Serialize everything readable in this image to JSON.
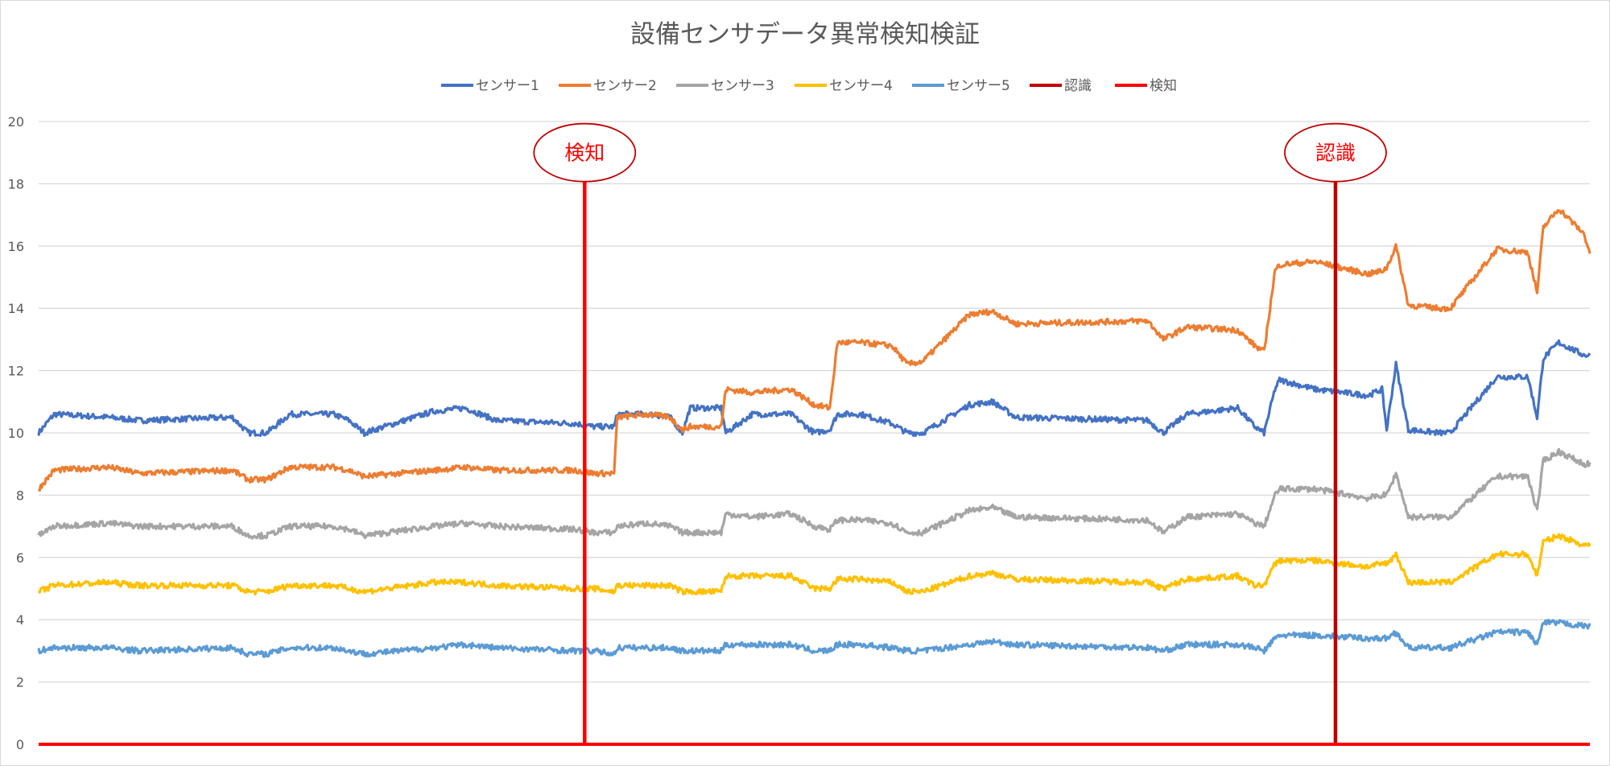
{
  "chart_data": {
    "type": "line",
    "title": "設備センサデータ異常検知検証",
    "xlabel": "",
    "ylabel": "",
    "ylim": [
      0,
      20
    ],
    "yticks": [
      "0",
      "2",
      "4",
      "6",
      "8",
      "10",
      "12",
      "14",
      "16",
      "18",
      "20"
    ],
    "xlim": [
      0,
      1000
    ],
    "grid": true,
    "legend_position": "top",
    "series": [
      {
        "name": "センサー1",
        "color": "#4472C4",
        "x": [
          0,
          10,
          45,
          65,
          125,
          135,
          147,
          162,
          190,
          200,
          210,
          255,
          275,
          295,
          346,
          358,
          371,
          373,
          393,
          407,
          415,
          420,
          440,
          443,
          460,
          485,
          500,
          510,
          515,
          530,
          550,
          560,
          570,
          600,
          615,
          630,
          715,
          725,
          740,
          773,
          784,
          790,
          797,
          800,
          823,
          857,
          866,
          869,
          875,
          883,
          903,
          910,
          940,
          960,
          966,
          970,
          980,
          996,
          1000
        ],
        "y": [
          10.0,
          10.6,
          10.5,
          10.4,
          10.5,
          10.0,
          10.0,
          10.6,
          10.6,
          10.4,
          10.0,
          10.7,
          10.8,
          10.4,
          10.3,
          10.2,
          10.2,
          10.6,
          10.6,
          10.5,
          10.0,
          10.8,
          10.8,
          10.0,
          10.6,
          10.6,
          10.0,
          10.1,
          10.6,
          10.6,
          10.3,
          10.0,
          10.0,
          10.9,
          11.0,
          10.5,
          10.4,
          10.0,
          10.6,
          10.8,
          10.2,
          10.0,
          11.4,
          11.7,
          11.4,
          11.2,
          11.4,
          10.1,
          12.2,
          10.1,
          10.0,
          10.0,
          11.8,
          11.8,
          10.5,
          12.4,
          12.9,
          12.5,
          12.5
        ]
      },
      {
        "name": "センサー2",
        "color": "#ED7D31",
        "x": [
          0,
          10,
          45,
          65,
          125,
          135,
          147,
          162,
          190,
          200,
          210,
          255,
          275,
          295,
          346,
          358,
          371,
          373,
          393,
          407,
          415,
          420,
          440,
          443,
          460,
          485,
          500,
          510,
          515,
          530,
          550,
          560,
          570,
          600,
          615,
          630,
          715,
          725,
          740,
          773,
          784,
          790,
          797,
          800,
          823,
          857,
          866,
          869,
          875,
          883,
          903,
          910,
          940,
          960,
          966,
          970,
          980,
          996,
          1000
        ],
        "y": [
          8.2,
          8.8,
          8.9,
          8.7,
          8.8,
          8.5,
          8.5,
          8.9,
          8.9,
          8.8,
          8.6,
          8.8,
          8.9,
          8.8,
          8.8,
          8.7,
          8.7,
          10.5,
          10.6,
          10.5,
          10.1,
          10.2,
          10.2,
          11.4,
          11.3,
          11.4,
          10.9,
          10.8,
          12.9,
          12.9,
          12.8,
          12.2,
          12.3,
          13.8,
          13.9,
          13.5,
          13.6,
          13.0,
          13.4,
          13.3,
          12.8,
          12.6,
          15.2,
          15.4,
          15.5,
          15.1,
          15.2,
          15.3,
          16.0,
          14.1,
          14.0,
          14.0,
          15.9,
          15.8,
          14.5,
          16.6,
          17.2,
          16.4,
          15.8
        ]
      },
      {
        "name": "センサー3",
        "color": "#A5A5A5",
        "x": [
          0,
          10,
          45,
          65,
          125,
          135,
          147,
          162,
          190,
          200,
          210,
          255,
          275,
          295,
          346,
          358,
          371,
          373,
          393,
          407,
          415,
          420,
          440,
          443,
          460,
          485,
          500,
          510,
          515,
          530,
          550,
          560,
          570,
          600,
          615,
          630,
          715,
          725,
          740,
          773,
          784,
          790,
          797,
          800,
          823,
          857,
          866,
          869,
          875,
          883,
          903,
          910,
          940,
          960,
          966,
          970,
          980,
          996,
          1000
        ],
        "y": [
          6.7,
          7.0,
          7.1,
          7.0,
          7.0,
          6.7,
          6.7,
          7.0,
          7.0,
          6.9,
          6.7,
          7.0,
          7.1,
          7.0,
          6.9,
          6.8,
          6.8,
          7.0,
          7.1,
          7.0,
          6.8,
          6.8,
          6.8,
          7.4,
          7.3,
          7.4,
          7.0,
          6.9,
          7.2,
          7.2,
          7.1,
          6.8,
          6.8,
          7.5,
          7.6,
          7.3,
          7.2,
          6.8,
          7.3,
          7.4,
          7.1,
          7.0,
          8.0,
          8.2,
          8.2,
          7.9,
          8.0,
          8.0,
          8.7,
          7.3,
          7.3,
          7.3,
          8.6,
          8.6,
          7.5,
          9.1,
          9.4,
          9.0,
          9.0
        ]
      },
      {
        "name": "センサー4",
        "color": "#FFC000",
        "x": [
          0,
          10,
          45,
          65,
          125,
          135,
          147,
          162,
          190,
          200,
          210,
          255,
          275,
          295,
          346,
          358,
          371,
          373,
          393,
          407,
          415,
          420,
          440,
          443,
          460,
          485,
          500,
          510,
          515,
          530,
          550,
          560,
          570,
          600,
          615,
          630,
          715,
          725,
          740,
          773,
          784,
          790,
          797,
          800,
          823,
          857,
          866,
          869,
          875,
          883,
          903,
          910,
          940,
          960,
          966,
          970,
          980,
          996,
          1000
        ],
        "y": [
          4.9,
          5.1,
          5.2,
          5.1,
          5.1,
          4.9,
          4.9,
          5.1,
          5.1,
          5.0,
          4.9,
          5.2,
          5.2,
          5.1,
          5.0,
          5.0,
          4.9,
          5.1,
          5.1,
          5.1,
          4.9,
          4.9,
          4.9,
          5.4,
          5.4,
          5.4,
          5.0,
          5.0,
          5.3,
          5.3,
          5.2,
          4.9,
          4.9,
          5.4,
          5.5,
          5.3,
          5.2,
          5.0,
          5.3,
          5.4,
          5.1,
          5.1,
          5.8,
          5.9,
          5.9,
          5.7,
          5.8,
          5.8,
          6.1,
          5.2,
          5.2,
          5.2,
          6.1,
          6.1,
          5.4,
          6.5,
          6.7,
          6.4,
          6.4
        ]
      },
      {
        "name": "センサー5",
        "color": "#5B9BD5",
        "x": [
          0,
          10,
          45,
          65,
          125,
          135,
          147,
          162,
          190,
          200,
          210,
          255,
          275,
          295,
          346,
          358,
          371,
          373,
          393,
          407,
          415,
          420,
          440,
          443,
          460,
          485,
          500,
          510,
          515,
          530,
          550,
          560,
          570,
          600,
          615,
          630,
          715,
          725,
          740,
          773,
          784,
          790,
          797,
          800,
          823,
          857,
          866,
          869,
          875,
          883,
          903,
          910,
          940,
          960,
          966,
          970,
          980,
          996,
          1000
        ],
        "y": [
          3.0,
          3.1,
          3.1,
          3.0,
          3.1,
          2.9,
          2.9,
          3.1,
          3.1,
          3.0,
          2.9,
          3.1,
          3.2,
          3.1,
          3.0,
          3.0,
          2.9,
          3.1,
          3.1,
          3.1,
          3.0,
          3.0,
          3.0,
          3.2,
          3.2,
          3.2,
          3.0,
          3.0,
          3.2,
          3.2,
          3.1,
          3.0,
          3.0,
          3.2,
          3.3,
          3.2,
          3.1,
          3.0,
          3.2,
          3.2,
          3.1,
          3.0,
          3.4,
          3.5,
          3.5,
          3.4,
          3.4,
          3.4,
          3.6,
          3.1,
          3.1,
          3.1,
          3.6,
          3.6,
          3.2,
          3.9,
          3.9,
          3.8,
          3.8
        ]
      },
      {
        "name": "認識",
        "color": "#C00000",
        "x": [
          836,
          836
        ],
        "y": [
          0,
          18.2
        ]
      },
      {
        "name": "検知",
        "color": "#FF0000",
        "x": [
          0,
          1000
        ],
        "y": [
          0,
          0
        ],
        "marker_x": [
          352,
          352
        ],
        "marker_y": [
          0,
          18.2
        ]
      }
    ],
    "annotations": [
      {
        "text": "検知",
        "x": 352,
        "y": 19.0,
        "color": "#FF0000"
      },
      {
        "text": "認識",
        "x": 836,
        "y": 19.0,
        "color": "#FF0000"
      }
    ]
  }
}
